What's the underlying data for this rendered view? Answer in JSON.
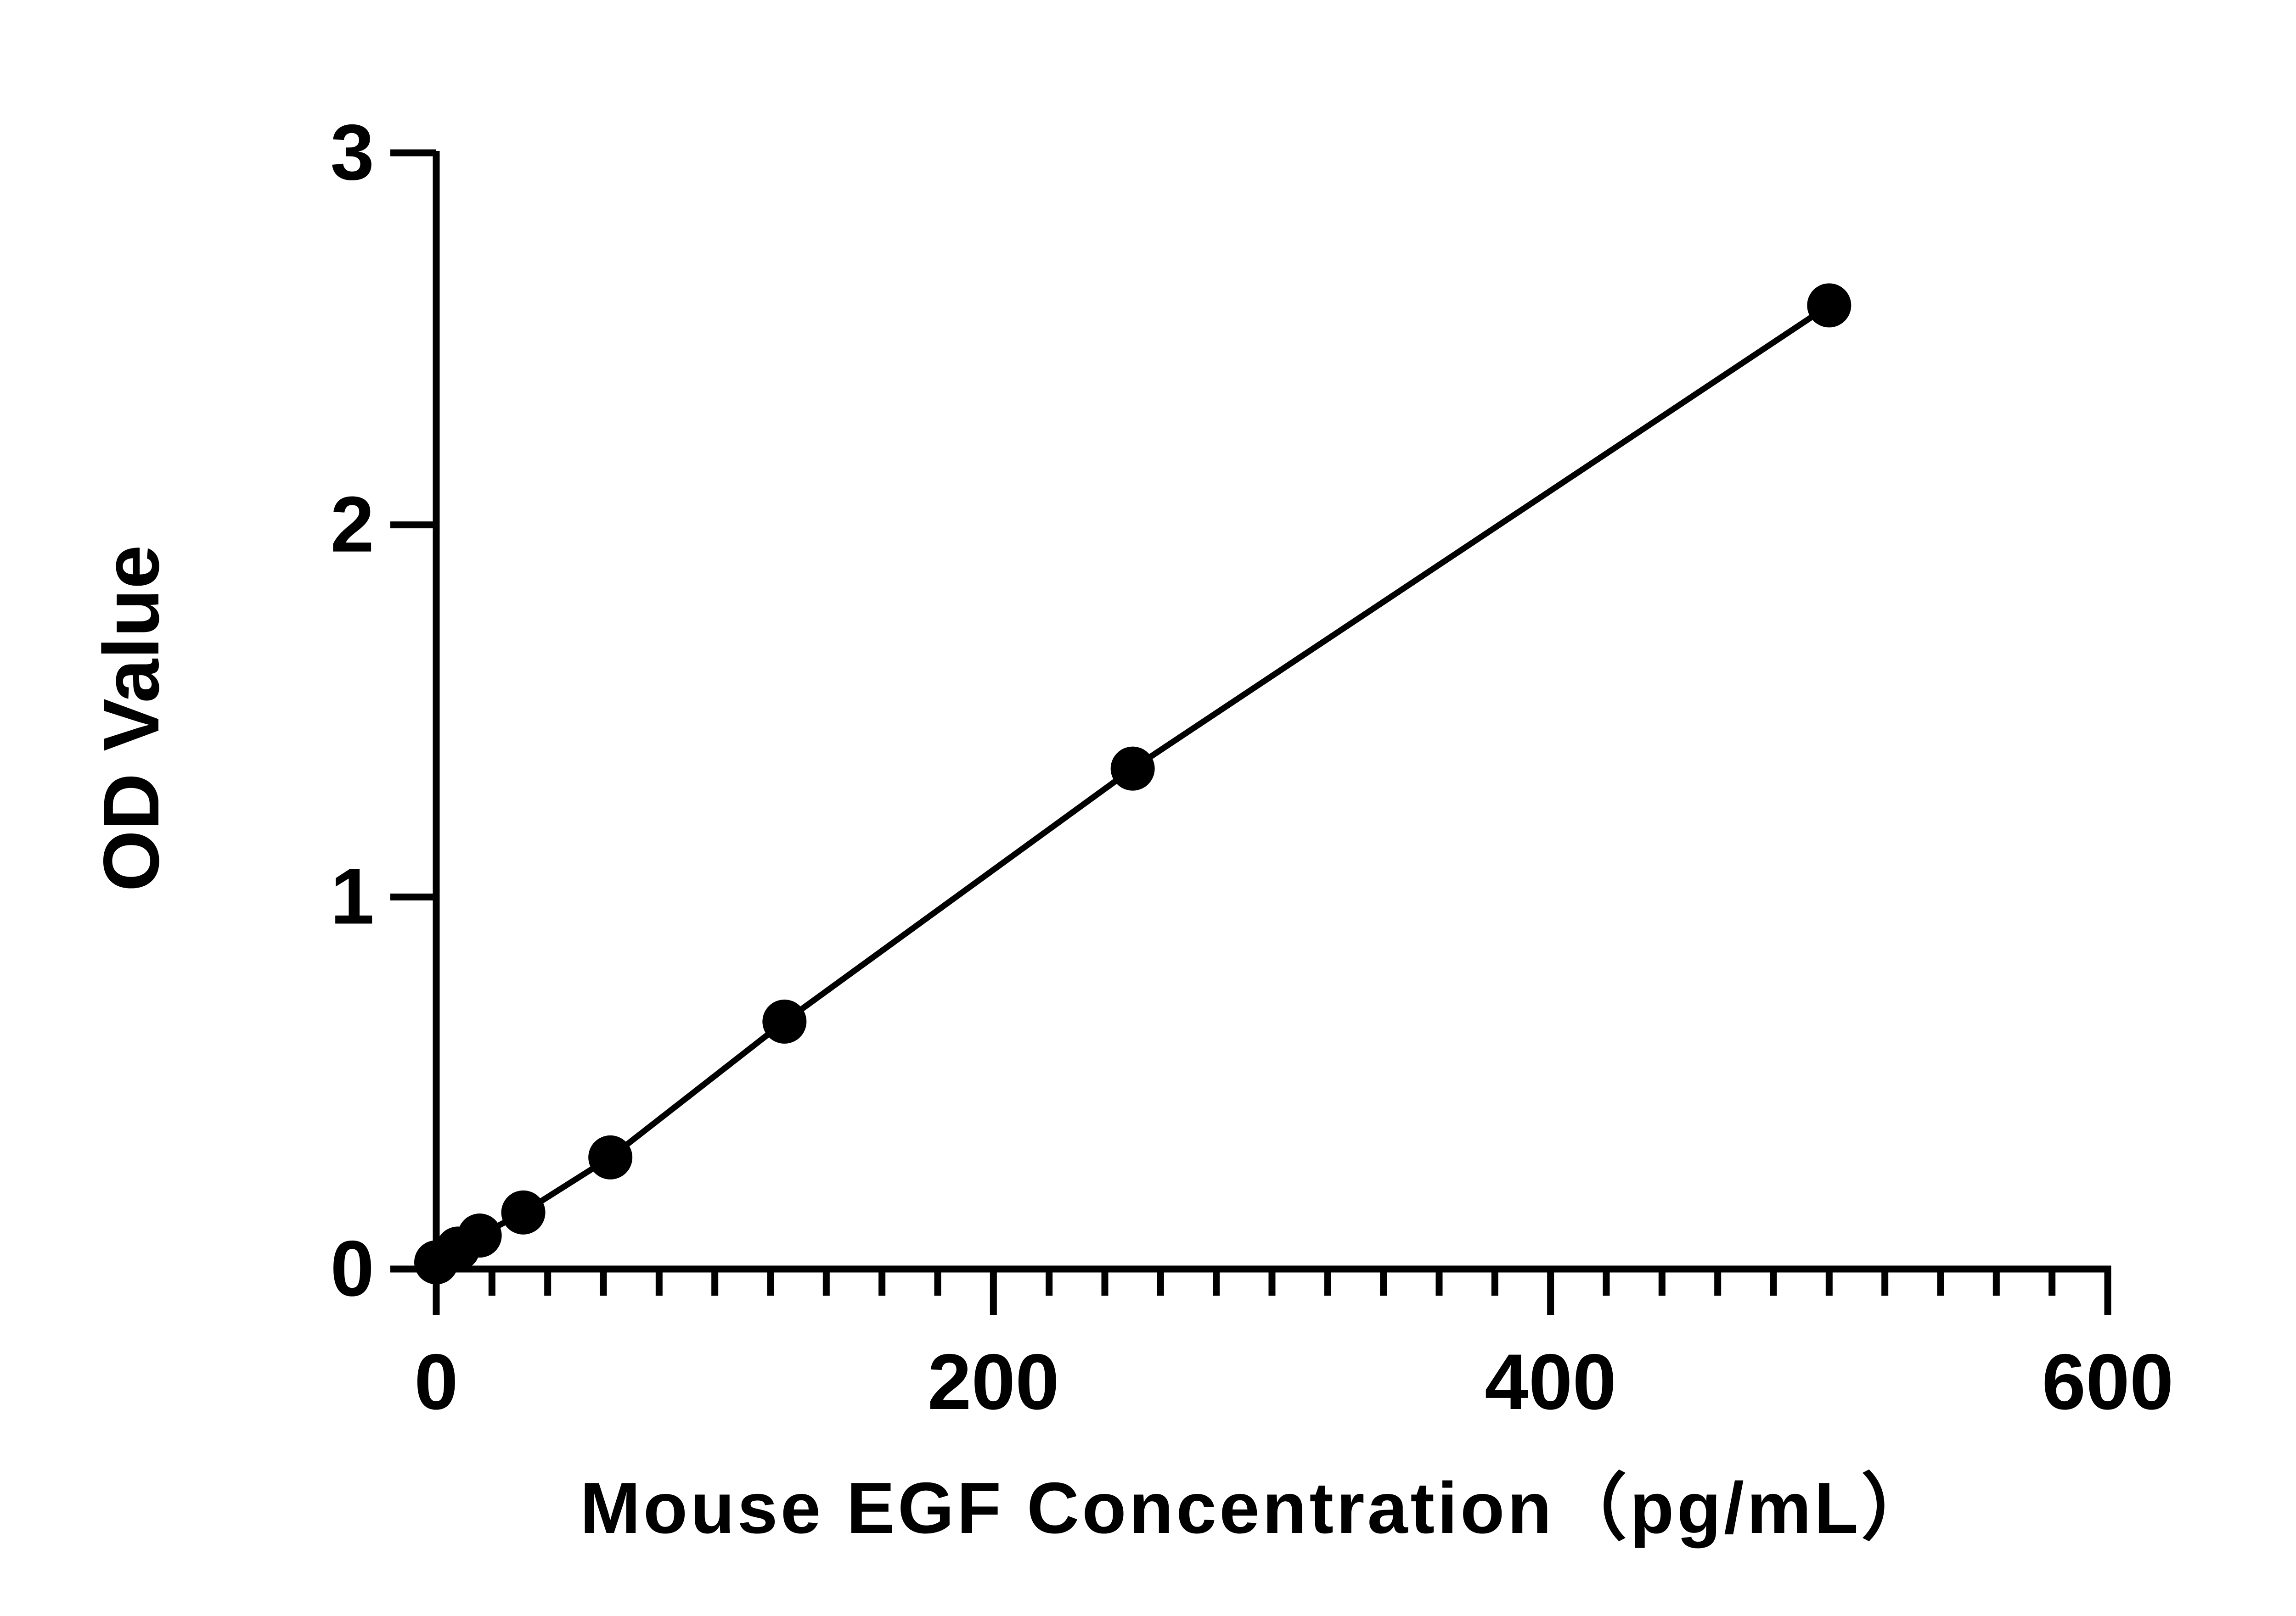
{
  "chart_data": {
    "type": "scatter",
    "title": "",
    "xlabel": "Mouse EGF Concentration（pg/mL）",
    "ylabel": "OD Value",
    "xlim": [
      0,
      600
    ],
    "ylim": [
      0,
      3
    ],
    "x_ticks": [
      "0",
      "200",
      "400",
      "600"
    ],
    "y_ticks": [
      "0",
      "1",
      "2",
      "3"
    ],
    "x_minor_step": 20,
    "grid": false,
    "legend": "none",
    "line": "connected-through-points",
    "colors": {
      "points": "#000000",
      "line": "#000000",
      "axes": "#000000"
    },
    "series": [
      {
        "x": [
          0,
          7.8,
          15.6,
          31.25,
          62.5,
          125,
          250,
          500
        ],
        "y": [
          0.018,
          0.055,
          0.09,
          0.152,
          0.3,
          0.665,
          1.345,
          2.59
        ]
      }
    ]
  }
}
